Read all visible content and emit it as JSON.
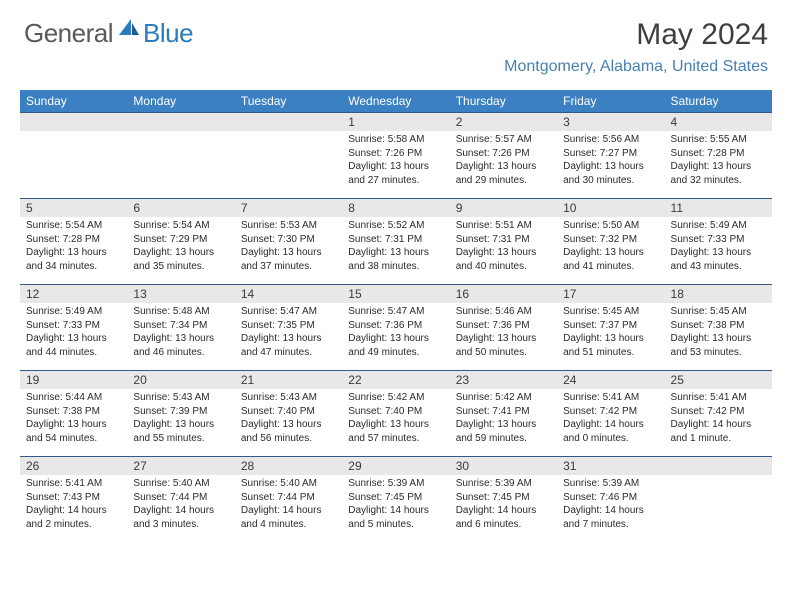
{
  "logo": {
    "general": "General",
    "blue": "Blue"
  },
  "title": "May 2024",
  "location": "Montgomery, Alabama, United States",
  "colors": {
    "header_bar": "#3a80c2",
    "header_text": "#ffffff",
    "daynum_bg": "#e8e8e8",
    "row_border": "#2f5a8a",
    "title_color": "#3f3f3f",
    "location_color": "#4780b3",
    "logo_gray": "#5a5a5a",
    "logo_blue": "#2b7bbf"
  },
  "weekdays": [
    "Sunday",
    "Monday",
    "Tuesday",
    "Wednesday",
    "Thursday",
    "Friday",
    "Saturday"
  ],
  "weeks": [
    [
      null,
      null,
      null,
      {
        "n": "1",
        "sr": "5:58 AM",
        "ss": "7:26 PM",
        "dl": "13 hours and 27 minutes."
      },
      {
        "n": "2",
        "sr": "5:57 AM",
        "ss": "7:26 PM",
        "dl": "13 hours and 29 minutes."
      },
      {
        "n": "3",
        "sr": "5:56 AM",
        "ss": "7:27 PM",
        "dl": "13 hours and 30 minutes."
      },
      {
        "n": "4",
        "sr": "5:55 AM",
        "ss": "7:28 PM",
        "dl": "13 hours and 32 minutes."
      }
    ],
    [
      {
        "n": "5",
        "sr": "5:54 AM",
        "ss": "7:28 PM",
        "dl": "13 hours and 34 minutes."
      },
      {
        "n": "6",
        "sr": "5:54 AM",
        "ss": "7:29 PM",
        "dl": "13 hours and 35 minutes."
      },
      {
        "n": "7",
        "sr": "5:53 AM",
        "ss": "7:30 PM",
        "dl": "13 hours and 37 minutes."
      },
      {
        "n": "8",
        "sr": "5:52 AM",
        "ss": "7:31 PM",
        "dl": "13 hours and 38 minutes."
      },
      {
        "n": "9",
        "sr": "5:51 AM",
        "ss": "7:31 PM",
        "dl": "13 hours and 40 minutes."
      },
      {
        "n": "10",
        "sr": "5:50 AM",
        "ss": "7:32 PM",
        "dl": "13 hours and 41 minutes."
      },
      {
        "n": "11",
        "sr": "5:49 AM",
        "ss": "7:33 PM",
        "dl": "13 hours and 43 minutes."
      }
    ],
    [
      {
        "n": "12",
        "sr": "5:49 AM",
        "ss": "7:33 PM",
        "dl": "13 hours and 44 minutes."
      },
      {
        "n": "13",
        "sr": "5:48 AM",
        "ss": "7:34 PM",
        "dl": "13 hours and 46 minutes."
      },
      {
        "n": "14",
        "sr": "5:47 AM",
        "ss": "7:35 PM",
        "dl": "13 hours and 47 minutes."
      },
      {
        "n": "15",
        "sr": "5:47 AM",
        "ss": "7:36 PM",
        "dl": "13 hours and 49 minutes."
      },
      {
        "n": "16",
        "sr": "5:46 AM",
        "ss": "7:36 PM",
        "dl": "13 hours and 50 minutes."
      },
      {
        "n": "17",
        "sr": "5:45 AM",
        "ss": "7:37 PM",
        "dl": "13 hours and 51 minutes."
      },
      {
        "n": "18",
        "sr": "5:45 AM",
        "ss": "7:38 PM",
        "dl": "13 hours and 53 minutes."
      }
    ],
    [
      {
        "n": "19",
        "sr": "5:44 AM",
        "ss": "7:38 PM",
        "dl": "13 hours and 54 minutes."
      },
      {
        "n": "20",
        "sr": "5:43 AM",
        "ss": "7:39 PM",
        "dl": "13 hours and 55 minutes."
      },
      {
        "n": "21",
        "sr": "5:43 AM",
        "ss": "7:40 PM",
        "dl": "13 hours and 56 minutes."
      },
      {
        "n": "22",
        "sr": "5:42 AM",
        "ss": "7:40 PM",
        "dl": "13 hours and 57 minutes."
      },
      {
        "n": "23",
        "sr": "5:42 AM",
        "ss": "7:41 PM",
        "dl": "13 hours and 59 minutes."
      },
      {
        "n": "24",
        "sr": "5:41 AM",
        "ss": "7:42 PM",
        "dl": "14 hours and 0 minutes."
      },
      {
        "n": "25",
        "sr": "5:41 AM",
        "ss": "7:42 PM",
        "dl": "14 hours and 1 minute."
      }
    ],
    [
      {
        "n": "26",
        "sr": "5:41 AM",
        "ss": "7:43 PM",
        "dl": "14 hours and 2 minutes."
      },
      {
        "n": "27",
        "sr": "5:40 AM",
        "ss": "7:44 PM",
        "dl": "14 hours and 3 minutes."
      },
      {
        "n": "28",
        "sr": "5:40 AM",
        "ss": "7:44 PM",
        "dl": "14 hours and 4 minutes."
      },
      {
        "n": "29",
        "sr": "5:39 AM",
        "ss": "7:45 PM",
        "dl": "14 hours and 5 minutes."
      },
      {
        "n": "30",
        "sr": "5:39 AM",
        "ss": "7:45 PM",
        "dl": "14 hours and 6 minutes."
      },
      {
        "n": "31",
        "sr": "5:39 AM",
        "ss": "7:46 PM",
        "dl": "14 hours and 7 minutes."
      },
      null
    ]
  ],
  "labels": {
    "sunrise": "Sunrise:",
    "sunset": "Sunset:",
    "daylight": "Daylight:"
  }
}
